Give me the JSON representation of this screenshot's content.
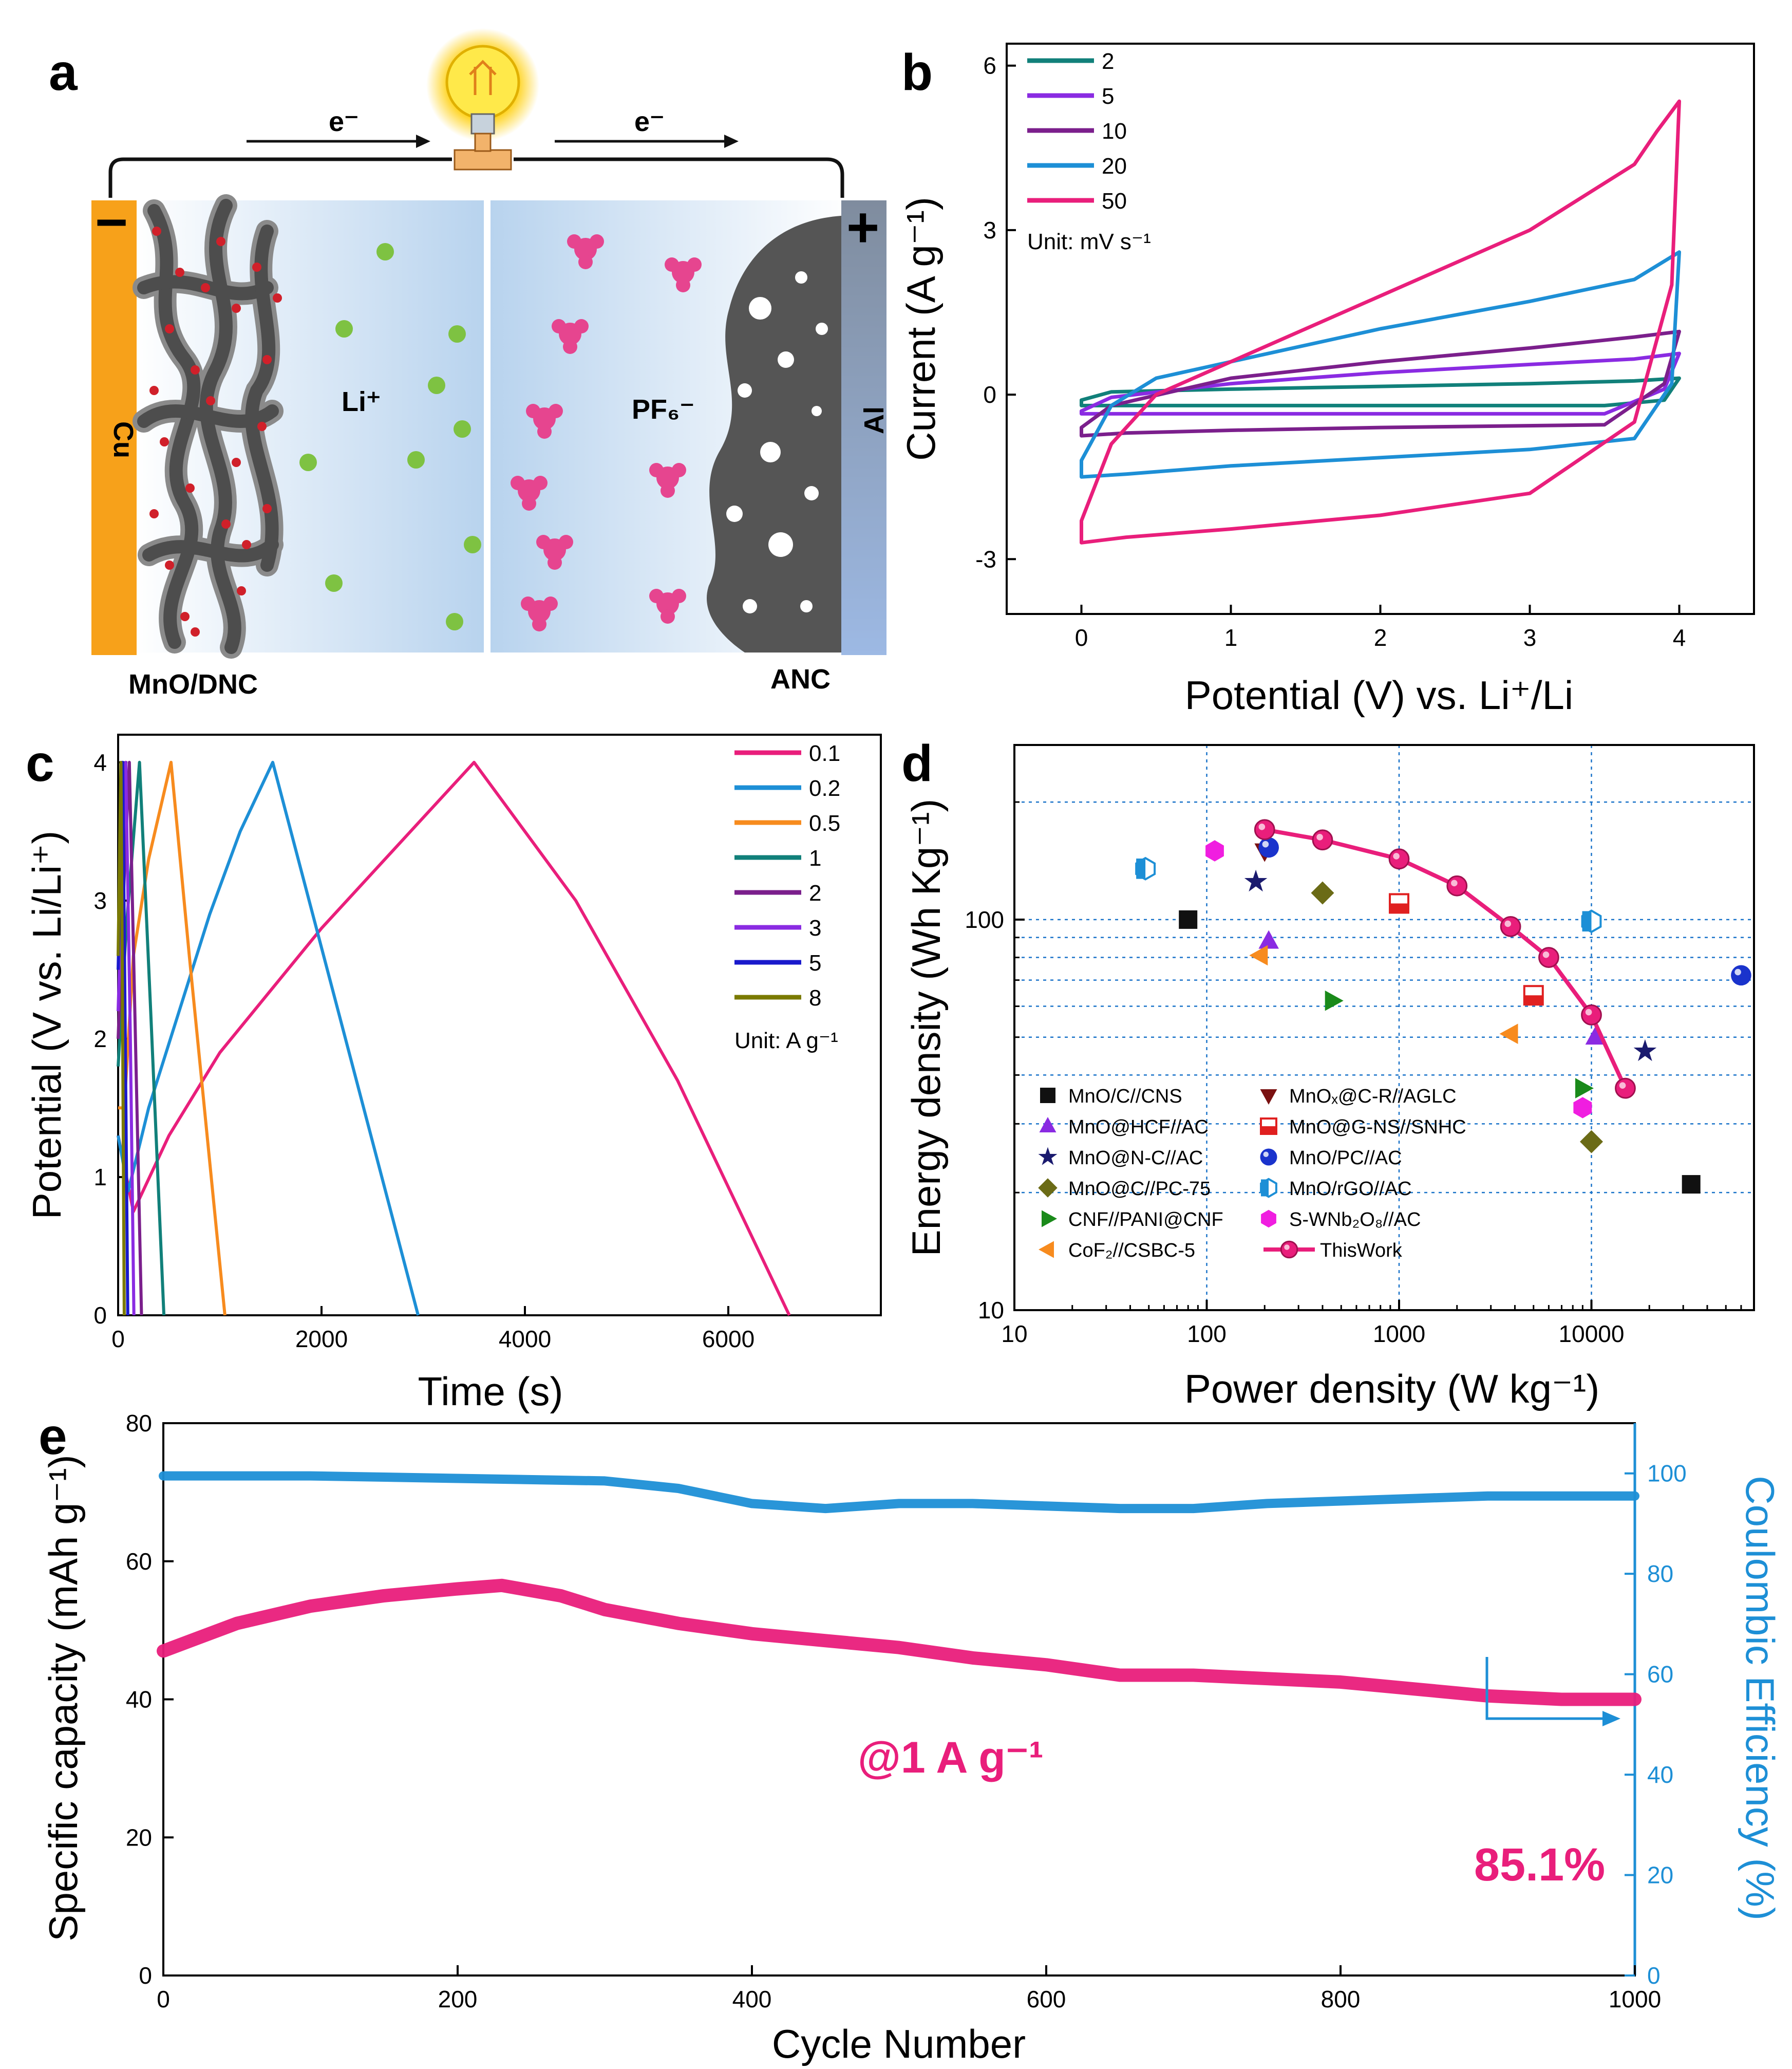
{
  "figure": {
    "panel_labels": [
      "a",
      "b",
      "c",
      "d",
      "e"
    ]
  },
  "schematic": {
    "electron_left": "e⁻",
    "electron_right": "e⁻",
    "neg_sign": "−",
    "pos_sign": "+",
    "cu_label": "Cu",
    "al_label": "Al",
    "li_label": "Li⁺",
    "pf6_label": "PF₆⁻",
    "anode_label": "MnO/DNC",
    "cathode_label": "ANC",
    "colors": {
      "copper": "#f7a11a",
      "aluminum": "#7f8c9e",
      "li_ion": "#7ec242",
      "pf6_ion": "#e6458f",
      "carbon": "#555555",
      "mno": "#d0202a"
    }
  },
  "chart_data": [
    {
      "id": "b",
      "type": "line",
      "xlabel": "Potential (V) vs. Li⁺/Li",
      "ylabel": "Current (A g⁻¹)",
      "xlim": [
        -0.5,
        4.5
      ],
      "ylim": [
        -4,
        6.4
      ],
      "xticks": [
        0,
        1,
        2,
        3,
        4
      ],
      "yticks": [
        -3,
        0,
        3,
        6
      ],
      "legend_title": "Unit: mV s⁻¹",
      "series": [
        {
          "name": "2",
          "color": "#11807a",
          "upper": [
            [
              0,
              -0.1
            ],
            [
              0.2,
              0.05
            ],
            [
              1,
              0.1
            ],
            [
              2,
              0.15
            ],
            [
              3,
              0.2
            ],
            [
              3.7,
              0.25
            ],
            [
              4,
              0.3
            ]
          ],
          "lower": [
            [
              4,
              0.3
            ],
            [
              3.9,
              -0.1
            ],
            [
              3.5,
              -0.2
            ],
            [
              2,
              -0.2
            ],
            [
              1,
              -0.2
            ],
            [
              0.3,
              -0.2
            ],
            [
              0,
              -0.2
            ]
          ]
        },
        {
          "name": "5",
          "color": "#8a2be2",
          "upper": [
            [
              0,
              -0.3
            ],
            [
              0.2,
              -0.05
            ],
            [
              1,
              0.2
            ],
            [
              2,
              0.4
            ],
            [
              3,
              0.55
            ],
            [
              3.7,
              0.65
            ],
            [
              4,
              0.75
            ]
          ],
          "lower": [
            [
              4,
              0.75
            ],
            [
              3.9,
              0.1
            ],
            [
              3.5,
              -0.35
            ],
            [
              2,
              -0.35
            ],
            [
              1,
              -0.35
            ],
            [
              0.3,
              -0.35
            ],
            [
              0,
              -0.35
            ]
          ]
        },
        {
          "name": "10",
          "color": "#7b1f8c",
          "upper": [
            [
              0,
              -0.6
            ],
            [
              0.2,
              -0.2
            ],
            [
              1,
              0.3
            ],
            [
              2,
              0.6
            ],
            [
              3,
              0.85
            ],
            [
              3.7,
              1.05
            ],
            [
              4,
              1.15
            ]
          ],
          "lower": [
            [
              4,
              1.15
            ],
            [
              3.9,
              0.2
            ],
            [
              3.5,
              -0.55
            ],
            [
              2,
              -0.6
            ],
            [
              1,
              -0.65
            ],
            [
              0.3,
              -0.7
            ],
            [
              0,
              -0.75
            ]
          ]
        },
        {
          "name": "20",
          "color": "#1d8fd6",
          "upper": [
            [
              0,
              -1.2
            ],
            [
              0.2,
              -0.2
            ],
            [
              0.5,
              0.3
            ],
            [
              1,
              0.6
            ],
            [
              2,
              1.2
            ],
            [
              3,
              1.7
            ],
            [
              3.7,
              2.1
            ],
            [
              4,
              2.6
            ]
          ],
          "lower": [
            [
              4,
              2.6
            ],
            [
              3.95,
              0.2
            ],
            [
              3.7,
              -0.8
            ],
            [
              3,
              -1.0
            ],
            [
              2,
              -1.15
            ],
            [
              1,
              -1.3
            ],
            [
              0.3,
              -1.45
            ],
            [
              0,
              -1.5
            ]
          ]
        },
        {
          "name": "50",
          "color": "#e91e7b",
          "upper": [
            [
              0,
              -2.3
            ],
            [
              0.2,
              -0.9
            ],
            [
              0.5,
              0
            ],
            [
              1,
              0.6
            ],
            [
              2,
              1.8
            ],
            [
              3,
              3.0
            ],
            [
              3.7,
              4.2
            ],
            [
              3.85,
              4.8
            ],
            [
              4,
              5.35
            ]
          ],
          "lower": [
            [
              4,
              5.35
            ],
            [
              3.95,
              2.0
            ],
            [
              3.7,
              -0.5
            ],
            [
              3,
              -1.8
            ],
            [
              2,
              -2.2
            ],
            [
              1,
              -2.45
            ],
            [
              0.3,
              -2.6
            ],
            [
              0,
              -2.7
            ]
          ]
        }
      ]
    },
    {
      "id": "c",
      "type": "line",
      "xlabel": "Time (s)",
      "ylabel": "Potential (V vs. Li/Li⁺)",
      "xlim": [
        0,
        7500
      ],
      "ylim": [
        0,
        4.2
      ],
      "xticks": [
        0,
        2000,
        4000,
        6000
      ],
      "yticks": [
        0,
        1,
        2,
        3,
        4
      ],
      "legend_title": "Unit: A g⁻¹",
      "series": [
        {
          "name": "0.1",
          "color": "#e91e7b",
          "points": [
            [
              0,
              1.3
            ],
            [
              150,
              0.75
            ],
            [
              500,
              1.3
            ],
            [
              1000,
              1.9
            ],
            [
              1500,
              2.35
            ],
            [
              2000,
              2.8
            ],
            [
              2500,
              3.2
            ],
            [
              3000,
              3.6
            ],
            [
              3500,
              4.0
            ],
            [
              4500,
              3.0
            ],
            [
              5500,
              1.7
            ],
            [
              6600,
              0
            ]
          ]
        },
        {
          "name": "0.2",
          "color": "#1d8fd6",
          "points": [
            [
              0,
              1.3
            ],
            [
              100,
              0.9
            ],
            [
              300,
              1.5
            ],
            [
              600,
              2.2
            ],
            [
              900,
              2.9
            ],
            [
              1200,
              3.5
            ],
            [
              1520,
              4.0
            ],
            [
              2200,
              2.1
            ],
            [
              2950,
              0
            ]
          ]
        },
        {
          "name": "0.5",
          "color": "#f78b1e",
          "points": [
            [
              0,
              1.5
            ],
            [
              60,
              1.5
            ],
            [
              150,
              2.6
            ],
            [
              300,
              3.3
            ],
            [
              520,
              4.0
            ],
            [
              700,
              2.6
            ],
            [
              1050,
              0
            ]
          ]
        },
        {
          "name": "1",
          "color": "#11807a",
          "points": [
            [
              0,
              1.8
            ],
            [
              80,
              2.8
            ],
            [
              210,
              4.0
            ],
            [
              320,
              2.2
            ],
            [
              450,
              0
            ]
          ]
        },
        {
          "name": "2",
          "color": "#7b1f8c",
          "points": [
            [
              0,
              2.0
            ],
            [
              50,
              3.0
            ],
            [
              110,
              4.0
            ],
            [
              170,
              2.0
            ],
            [
              230,
              0
            ]
          ]
        },
        {
          "name": "3",
          "color": "#8a2be2",
          "points": [
            [
              0,
              2.2
            ],
            [
              40,
              3.2
            ],
            [
              75,
              4.0
            ],
            [
              120,
              2.0
            ],
            [
              155,
              0
            ]
          ]
        },
        {
          "name": "5",
          "color": "#1a1acc",
          "points": [
            [
              0,
              2.5
            ],
            [
              25,
              3.3
            ],
            [
              45,
              4.0
            ],
            [
              70,
              2.0
            ],
            [
              95,
              0
            ]
          ]
        },
        {
          "name": "8",
          "color": "#7a7a00",
          "points": [
            [
              0,
              2.6
            ],
            [
              15,
              3.4
            ],
            [
              28,
              4.0
            ],
            [
              45,
              2.0
            ],
            [
              60,
              0
            ]
          ]
        }
      ]
    },
    {
      "id": "d",
      "type": "scatter",
      "xscale": "log",
      "yscale": "log",
      "xlabel": "Power density (W kg⁻¹)",
      "ylabel": "Energy density (Wh Kg⁻¹)",
      "xlim": [
        10,
        70000
      ],
      "ylim": [
        10,
        280
      ],
      "xticks": [
        10,
        100,
        1000,
        10000
      ],
      "xtick_labels": [
        "10",
        "100",
        "1000",
        "10000"
      ],
      "yticks": [
        10,
        100
      ],
      "ytick_labels": [
        "10",
        "100"
      ],
      "series": [
        {
          "name": "MnO/C//CNS",
          "marker": "square",
          "color": "#111111",
          "points": [
            [
              80,
              100
            ],
            [
              33000,
              21
            ]
          ]
        },
        {
          "name": "MnOₓ@C-R//AGLC",
          "marker": "triangle-down",
          "color": "#7a1111",
          "points": [
            [
              200,
              150
            ]
          ]
        },
        {
          "name": "MnO@HCF//AC",
          "marker": "triangle-up",
          "color": "#8a2be2",
          "points": [
            [
              210,
              88
            ],
            [
              10500,
              50
            ]
          ]
        },
        {
          "name": "MnO@G-NS//SNHC",
          "marker": "half-square",
          "color": "#e02020",
          "points": [
            [
              1000,
              110
            ],
            [
              5000,
              64
            ]
          ]
        },
        {
          "name": "MnO@N-C//AC",
          "marker": "star",
          "color": "#1a1a6e",
          "points": [
            [
              180,
              125
            ],
            [
              19000,
              46
            ]
          ]
        },
        {
          "name": "MnO/PC//AC",
          "marker": "sphere",
          "color": "#1a33cc",
          "points": [
            [
              210,
              153
            ],
            [
              60000,
              72
            ]
          ]
        },
        {
          "name": "MnO@C//PC-75",
          "marker": "diamond",
          "color": "#6b6b16",
          "points": [
            [
              400,
              117
            ],
            [
              10000,
              27
            ]
          ]
        },
        {
          "name": "MnO/rGO//AC",
          "marker": "half-hexagon",
          "color": "#1d8fd6",
          "points": [
            [
              48,
              135
            ],
            [
              10000,
              99
            ]
          ]
        },
        {
          "name": "CNF//PANI@CNF",
          "marker": "triangle-right",
          "color": "#1a8a1a",
          "points": [
            [
              450,
              62
            ],
            [
              9000,
              37
            ]
          ]
        },
        {
          "name": "S-WNb₂O₈//AC",
          "marker": "hexagon",
          "color": "#f01ee0",
          "points": [
            [
              110,
              150
            ],
            [
              9000,
              33
            ]
          ]
        },
        {
          "name": "CoF₂//CSBC-5",
          "marker": "triangle-left",
          "color": "#f78b1e",
          "points": [
            [
              190,
              81
            ],
            [
              3800,
              51
            ]
          ]
        },
        {
          "name": "ThisWork",
          "marker": "circle-line",
          "color": "#e91e7b",
          "points": [
            [
              200,
              170
            ],
            [
              400,
              160
            ],
            [
              1000,
              143
            ],
            [
              2000,
              122
            ],
            [
              3800,
              96
            ],
            [
              6000,
              80
            ],
            [
              10000,
              57
            ],
            [
              15000,
              37
            ]
          ]
        }
      ]
    },
    {
      "id": "e",
      "type": "line",
      "xlabel": "Cycle Number",
      "ylabel": "Specific capacity  (mAh g⁻¹)",
      "ylabel_right": "Coulombic Efficiency (%)",
      "xlim": [
        0,
        1000
      ],
      "ylim": [
        0,
        80
      ],
      "ylim_right": [
        0,
        110
      ],
      "xticks": [
        0,
        200,
        400,
        600,
        800,
        1000
      ],
      "yticks": [
        0,
        20,
        40,
        60,
        80
      ],
      "yticks_right": [
        0,
        20,
        40,
        60,
        80,
        100
      ],
      "annotations": [
        "@1 A g⁻¹",
        "85.1%"
      ],
      "series": [
        {
          "name": "Specific capacity",
          "axis": "left",
          "color": "#e91e7b",
          "points": [
            [
              0,
              47
            ],
            [
              50,
              51
            ],
            [
              100,
              53.5
            ],
            [
              150,
              55
            ],
            [
              200,
              56
            ],
            [
              230,
              56.5
            ],
            [
              270,
              55
            ],
            [
              300,
              53
            ],
            [
              350,
              51
            ],
            [
              400,
              49.5
            ],
            [
              450,
              48.5
            ],
            [
              500,
              47.5
            ],
            [
              550,
              46
            ],
            [
              600,
              45
            ],
            [
              650,
              43.5
            ],
            [
              700,
              43.5
            ],
            [
              750,
              43
            ],
            [
              800,
              42.5
            ],
            [
              850,
              41.5
            ],
            [
              900,
              40.5
            ],
            [
              950,
              40
            ],
            [
              1000,
              40
            ]
          ]
        },
        {
          "name": "Coulombic efficiency",
          "axis": "right",
          "color": "#1d8fd6",
          "points": [
            [
              0,
              99.5
            ],
            [
              100,
              99.5
            ],
            [
              200,
              99
            ],
            [
              300,
              98.5
            ],
            [
              350,
              97
            ],
            [
              400,
              94
            ],
            [
              450,
              93
            ],
            [
              500,
              94
            ],
            [
              550,
              94
            ],
            [
              600,
              93.5
            ],
            [
              650,
              93
            ],
            [
              700,
              93
            ],
            [
              750,
              94
            ],
            [
              800,
              94.5
            ],
            [
              850,
              95
            ],
            [
              900,
              95.5
            ],
            [
              950,
              95.5
            ],
            [
              1000,
              95.5
            ]
          ]
        }
      ]
    }
  ]
}
